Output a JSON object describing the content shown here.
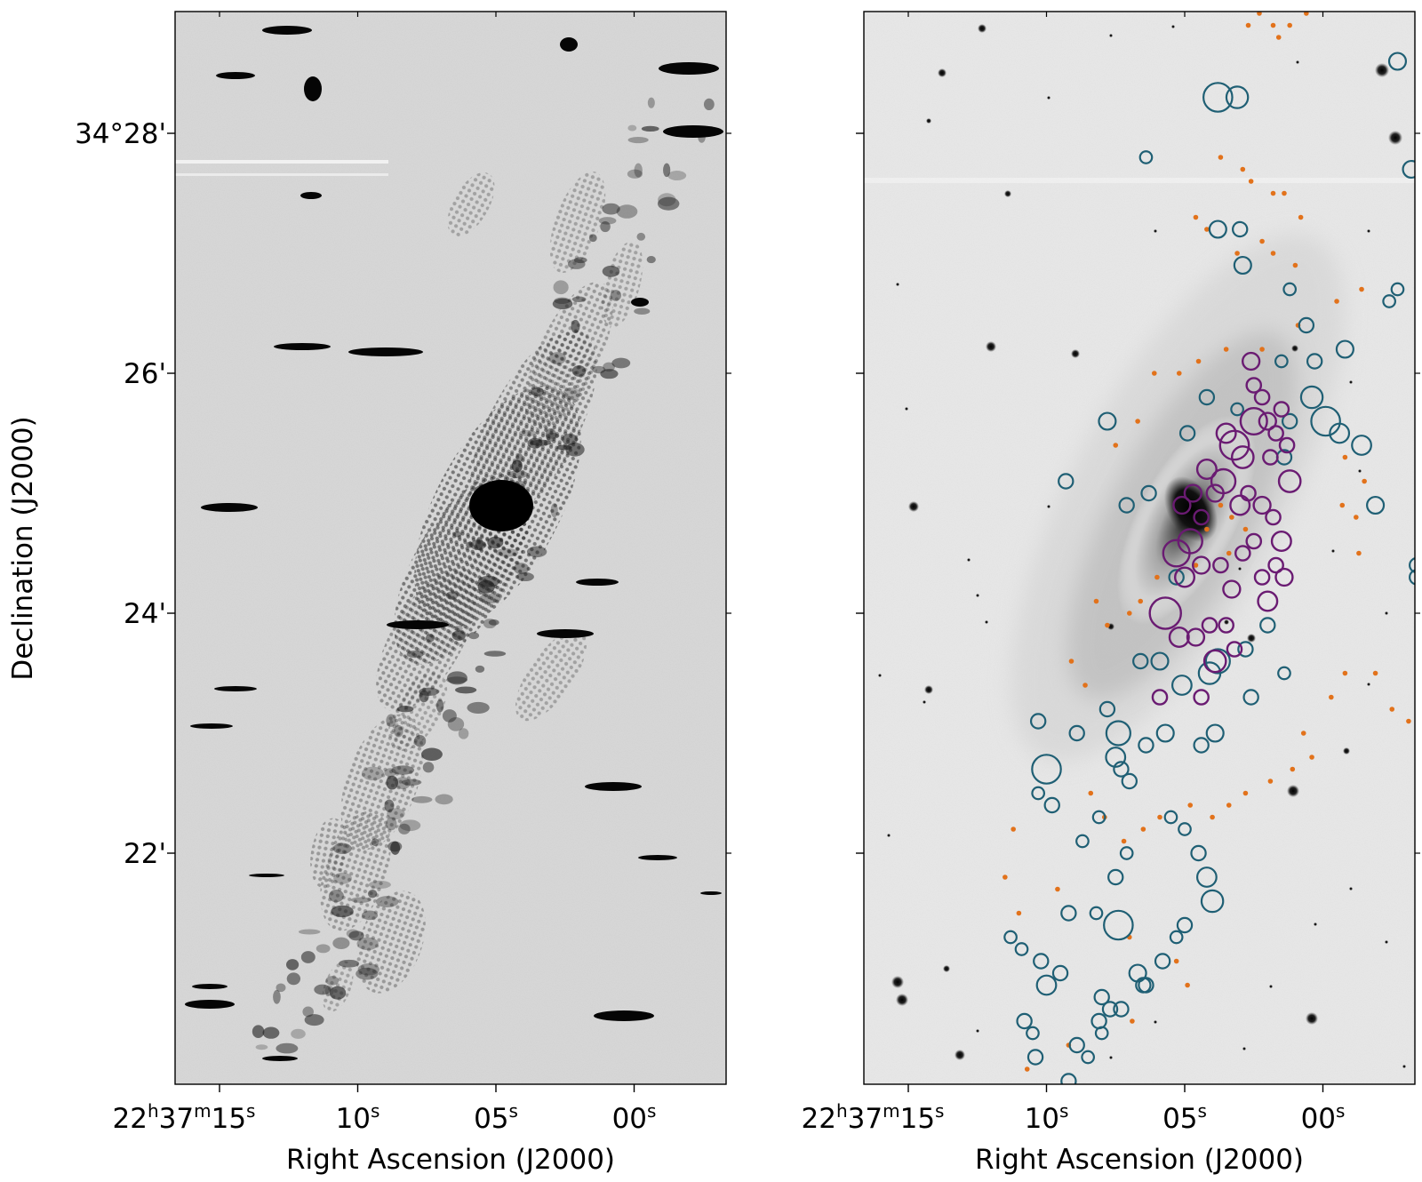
{
  "chart_data": [
    {
      "type": "image",
      "panel": "left",
      "xlabel": "Right Ascension (J2000)",
      "ylabel": "Declination (J2000)",
      "x_ticks": [
        {
          "value_s": 15,
          "label_h": "22",
          "label_m": "37",
          "label_s": "15"
        },
        {
          "value_s": 10,
          "label_s": "10"
        },
        {
          "value_s": 5,
          "label_s": "05"
        },
        {
          "value_s": 0,
          "label_s": "00"
        }
      ],
      "y_ticks": [
        {
          "value_arcmin": 28,
          "label": "34°28'"
        },
        {
          "value_arcmin": 26,
          "label": "26'"
        },
        {
          "value_arcmin": 24,
          "label": "24'"
        },
        {
          "value_arcmin": 22,
          "label": "22'"
        }
      ],
      "grayscale": "inverted"
    },
    {
      "type": "image",
      "panel": "right",
      "xlabel": "Right Ascension (J2000)",
      "x_ticks": [
        {
          "value_s": 15,
          "label_h": "22",
          "label_m": "37",
          "label_s": "15"
        },
        {
          "value_s": 10,
          "label_s": "10"
        },
        {
          "value_s": 5,
          "label_s": "05"
        },
        {
          "value_s": 0,
          "label_s": "00"
        }
      ],
      "y_ticks": [
        {
          "value_arcmin": 28
        },
        {
          "value_arcmin": 26
        },
        {
          "value_arcmin": 24
        },
        {
          "value_arcmin": 22
        }
      ],
      "grayscale": "inverted",
      "overlays": {
        "teal_circles": {
          "color": "#1f5f74",
          "points": [
            [
              -2.7,
              28.6,
              0.7
            ],
            [
              3.8,
              28.3,
              1.2
            ],
            [
              3.1,
              28.3,
              0.9
            ],
            [
              -3.2,
              27.7,
              0.7
            ],
            [
              6.4,
              27.8,
              0.5
            ],
            [
              -2.7,
              26.7,
              0.5
            ],
            [
              -2.4,
              26.6,
              0.5
            ],
            [
              3.0,
              27.2,
              0.6
            ],
            [
              3.8,
              27.2,
              0.7
            ],
            [
              2.9,
              26.9,
              0.7
            ],
            [
              1.2,
              26.7,
              0.5
            ],
            [
              0.6,
              26.4,
              0.6
            ],
            [
              -0.8,
              26.2,
              0.7
            ],
            [
              0.3,
              26.1,
              0.6
            ],
            [
              0.4,
              25.8,
              0.9
            ],
            [
              1.5,
              26.1,
              0.5
            ],
            [
              -0.1,
              25.6,
              1.2
            ],
            [
              -0.6,
              25.5,
              0.8
            ],
            [
              -1.4,
              25.4,
              0.8
            ],
            [
              1.2,
              25.6,
              0.6
            ],
            [
              1.4,
              25.3,
              0.6
            ],
            [
              3.1,
              25.7,
              0.5
            ],
            [
              4.2,
              25.8,
              0.6
            ],
            [
              4.9,
              25.5,
              0.6
            ],
            [
              -1.9,
              24.9,
              0.7
            ],
            [
              -3.4,
              24.4,
              0.6
            ],
            [
              -3.4,
              24.3,
              0.6
            ],
            [
              7.8,
              25.6,
              0.7
            ],
            [
              9.3,
              25.1,
              0.6
            ],
            [
              6.3,
              25.0,
              0.6
            ],
            [
              7.1,
              24.9,
              0.6
            ],
            [
              5.3,
              24.3,
              0.6
            ],
            [
              5.9,
              23.6,
              0.7
            ],
            [
              5.1,
              23.4,
              0.8
            ],
            [
              4.1,
              23.5,
              0.9
            ],
            [
              3.8,
              23.6,
              1.0
            ],
            [
              2.8,
              23.7,
              0.6
            ],
            [
              2.0,
              23.9,
              0.6
            ],
            [
              1.4,
              23.5,
              0.5
            ],
            [
              2.6,
              23.3,
              0.6
            ],
            [
              3.9,
              23.0,
              0.7
            ],
            [
              4.4,
              22.9,
              0.6
            ],
            [
              5.7,
              23.0,
              0.7
            ],
            [
              6.4,
              22.9,
              0.6
            ],
            [
              6.6,
              23.6,
              0.6
            ],
            [
              7.8,
              23.2,
              0.6
            ],
            [
              7.4,
              23.0,
              1.0
            ],
            [
              7.5,
              22.8,
              0.8
            ],
            [
              7.3,
              22.7,
              0.6
            ],
            [
              7.0,
              22.6,
              0.6
            ],
            [
              8.9,
              23.0,
              0.6
            ],
            [
              10.3,
              23.1,
              0.6
            ],
            [
              10.3,
              22.5,
              0.5
            ],
            [
              5.5,
              22.3,
              0.5
            ],
            [
              5.0,
              22.2,
              0.5
            ],
            [
              4.5,
              22.0,
              0.6
            ],
            [
              10.0,
              22.7,
              1.2
            ],
            [
              9.8,
              22.4,
              0.6
            ],
            [
              8.1,
              22.3,
              0.5
            ],
            [
              8.7,
              22.1,
              0.5
            ],
            [
              7.1,
              22.0,
              0.5
            ],
            [
              7.5,
              21.8,
              0.6
            ],
            [
              8.2,
              21.5,
              0.5
            ],
            [
              9.2,
              21.5,
              0.6
            ],
            [
              10.2,
              21.1,
              0.6
            ],
            [
              9.5,
              21.0,
              0.6
            ],
            [
              10.0,
              20.9,
              0.8
            ],
            [
              11.3,
              21.3,
              0.5
            ],
            [
              10.9,
              21.2,
              0.5
            ],
            [
              7.4,
              21.4,
              1.2
            ],
            [
              6.7,
              21.0,
              0.7
            ],
            [
              6.5,
              20.9,
              0.6
            ],
            [
              7.3,
              20.7,
              0.6
            ],
            [
              8.0,
              20.8,
              0.6
            ],
            [
              8.1,
              20.6,
              0.6
            ],
            [
              8.9,
              20.4,
              0.6
            ],
            [
              4.0,
              21.6,
              0.9
            ],
            [
              4.2,
              21.8,
              0.8
            ],
            [
              5.0,
              21.4,
              0.6
            ],
            [
              5.3,
              21.3,
              0.5
            ],
            [
              5.8,
              21.1,
              0.6
            ],
            [
              6.4,
              20.9,
              0.6
            ],
            [
              7.7,
              20.7,
              0.6
            ],
            [
              8.0,
              20.5,
              0.5
            ],
            [
              8.5,
              20.3,
              0.5
            ],
            [
              10.8,
              20.6,
              0.6
            ],
            [
              10.5,
              20.5,
              0.5
            ],
            [
              10.4,
              20.3,
              0.6
            ],
            [
              9.2,
              20.1,
              0.6
            ]
          ]
        },
        "purple_circles": {
          "color": "#6a1b72",
          "points": [
            [
              2.5,
              25.9,
              0.6
            ],
            [
              2.6,
              26.1,
              0.7
            ],
            [
              2.2,
              25.8,
              0.6
            ],
            [
              2.0,
              25.6,
              0.7
            ],
            [
              2.5,
              25.6,
              1.1
            ],
            [
              3.5,
              25.5,
              0.8
            ],
            [
              3.2,
              25.4,
              1.2
            ],
            [
              2.9,
              25.3,
              0.9
            ],
            [
              3.6,
              25.1,
              1.0
            ],
            [
              3.9,
              25.0,
              0.7
            ],
            [
              4.2,
              25.2,
              0.8
            ],
            [
              4.7,
              25.0,
              0.7
            ],
            [
              5.1,
              24.9,
              0.7
            ],
            [
              4.4,
              24.8,
              0.6
            ],
            [
              3.0,
              24.9,
              0.8
            ],
            [
              2.7,
              25.0,
              0.6
            ],
            [
              2.2,
              24.9,
              0.7
            ],
            [
              1.8,
              24.8,
              0.6
            ],
            [
              2.5,
              24.6,
              0.6
            ],
            [
              1.5,
              24.6,
              0.8
            ],
            [
              1.2,
              25.1,
              0.9
            ],
            [
              1.9,
              25.3,
              0.6
            ],
            [
              4.8,
              24.6,
              1.0
            ],
            [
              5.3,
              24.5,
              1.1
            ],
            [
              5.0,
              24.3,
              0.8
            ],
            [
              4.4,
              24.4,
              0.7
            ],
            [
              3.7,
              24.4,
              0.6
            ],
            [
              3.3,
              24.2,
              0.7
            ],
            [
              2.9,
              24.5,
              0.6
            ],
            [
              2.2,
              24.3,
              0.6
            ],
            [
              2.0,
              24.1,
              0.8
            ],
            [
              1.7,
              24.4,
              0.6
            ],
            [
              1.4,
              24.3,
              0.7
            ],
            [
              5.7,
              24.0,
              1.3
            ],
            [
              5.2,
              23.8,
              0.8
            ],
            [
              4.6,
              23.8,
              0.7
            ],
            [
              4.1,
              23.9,
              0.6
            ],
            [
              3.9,
              23.6,
              0.9
            ],
            [
              3.5,
              23.9,
              0.6
            ],
            [
              3.2,
              23.7,
              0.6
            ],
            [
              5.9,
              23.3,
              0.6
            ],
            [
              4.4,
              23.3,
              0.6
            ],
            [
              1.3,
              25.4,
              0.6
            ],
            [
              1.7,
              25.5,
              0.6
            ],
            [
              1.5,
              25.7,
              0.6
            ]
          ]
        },
        "orange_dots": {
          "color": "#e2721b",
          "points": [
            [
              2.7,
              28.9
            ],
            [
              2.3,
              29.0
            ],
            [
              1.8,
              28.9
            ],
            [
              1.6,
              28.8
            ],
            [
              1.2,
              28.9
            ],
            [
              0.6,
              29.0
            ],
            [
              3.7,
              27.8
            ],
            [
              2.9,
              27.7
            ],
            [
              2.6,
              27.6
            ],
            [
              1.8,
              27.5
            ],
            [
              1.4,
              27.5
            ],
            [
              0.8,
              27.3
            ],
            [
              4.6,
              27.3
            ],
            [
              4.2,
              27.2
            ],
            [
              3.1,
              27.0
            ],
            [
              2.2,
              27.1
            ],
            [
              1.8,
              27.0
            ],
            [
              1.0,
              26.9
            ],
            [
              -0.5,
              26.6
            ],
            [
              -1.4,
              26.7
            ],
            [
              0.9,
              26.4
            ],
            [
              2.2,
              26.2
            ],
            [
              3.5,
              26.2
            ],
            [
              4.5,
              26.1
            ],
            [
              5.2,
              26.0
            ],
            [
              6.1,
              26.0
            ],
            [
              6.7,
              25.6
            ],
            [
              7.5,
              25.4
            ],
            [
              -0.8,
              25.3
            ],
            [
              -1.5,
              25.1
            ],
            [
              -0.7,
              24.9
            ],
            [
              -1.2,
              24.8
            ],
            [
              -1.3,
              24.5
            ],
            [
              3.7,
              24.9
            ],
            [
              3.3,
              24.8
            ],
            [
              2.8,
              24.7
            ],
            [
              4.2,
              24.7
            ],
            [
              3.4,
              24.5
            ],
            [
              4.6,
              24.4
            ],
            [
              6.0,
              24.3
            ],
            [
              6.6,
              24.1
            ],
            [
              7.0,
              24.0
            ],
            [
              7.8,
              23.9
            ],
            [
              8.2,
              24.1
            ],
            [
              9.1,
              23.6
            ],
            [
              8.6,
              23.4
            ],
            [
              -0.8,
              23.5
            ],
            [
              -0.3,
              23.3
            ],
            [
              -1.9,
              23.5
            ],
            [
              -2.5,
              23.2
            ],
            [
              -3.1,
              23.1
            ],
            [
              0.7,
              23.0
            ],
            [
              0.4,
              22.8
            ],
            [
              1.1,
              22.7
            ],
            [
              1.9,
              22.6
            ],
            [
              2.8,
              22.5
            ],
            [
              3.4,
              22.4
            ],
            [
              4.0,
              22.3
            ],
            [
              4.8,
              22.4
            ],
            [
              5.9,
              22.3
            ],
            [
              6.5,
              22.2
            ],
            [
              7.2,
              22.1
            ],
            [
              7.9,
              22.3
            ],
            [
              8.4,
              22.5
            ],
            [
              11.2,
              22.2
            ],
            [
              11.5,
              21.8
            ],
            [
              11.0,
              21.5
            ],
            [
              9.6,
              21.7
            ],
            [
              7.0,
              21.3
            ],
            [
              5.3,
              21.1
            ],
            [
              4.9,
              20.9
            ],
            [
              6.9,
              20.6
            ],
            [
              9.2,
              20.4
            ],
            [
              10.7,
              20.2
            ]
          ]
        }
      }
    }
  ]
}
